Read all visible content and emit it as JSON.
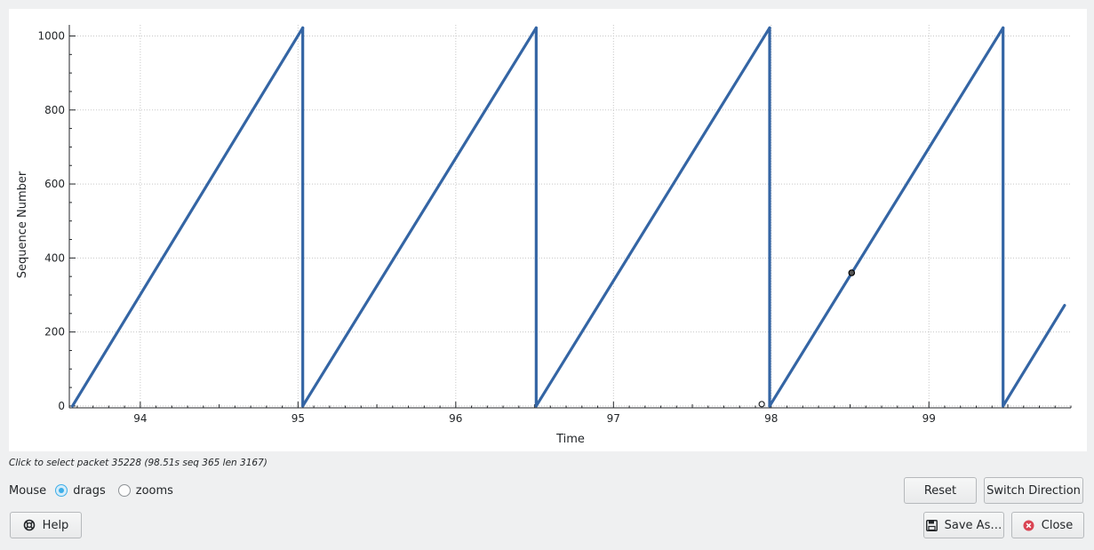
{
  "chart_data": {
    "type": "scatter",
    "title": "",
    "xlabel": "Time",
    "ylabel": "Sequence Number",
    "xlim": [
      93.55,
      99.9
    ],
    "ylim": [
      -5,
      1030
    ],
    "xticks": [
      "94",
      "95",
      "96",
      "97",
      "98",
      "99"
    ],
    "xtick_values": [
      94,
      95,
      96,
      97,
      98,
      99
    ],
    "yticks": [
      "0",
      "200",
      "400",
      "600",
      "800",
      "1000"
    ],
    "ytick_values": [
      0,
      200,
      400,
      600,
      800,
      1000
    ],
    "grid": true,
    "series": [
      {
        "color": "#3465a4",
        "segments": [
          {
            "x0": 93.57,
            "y0": 0,
            "x1": 95.03,
            "y1": 1022
          },
          {
            "x0": 95.03,
            "y0": 1022,
            "x1": 95.03,
            "y1": 0
          },
          {
            "x0": 95.03,
            "y0": 0,
            "x1": 96.51,
            "y1": 1022
          },
          {
            "x0": 96.51,
            "y0": 1022,
            "x1": 96.51,
            "y1": 0
          },
          {
            "x0": 96.51,
            "y0": 0,
            "x1": 97.99,
            "y1": 1022
          },
          {
            "x0": 97.99,
            "y0": 1022,
            "x1": 97.99,
            "y1": 0
          },
          {
            "x0": 97.99,
            "y0": 0,
            "x1": 99.47,
            "y1": 1022
          },
          {
            "x0": 99.47,
            "y0": 1022,
            "x1": 99.47,
            "y1": 0
          },
          {
            "x0": 99.47,
            "y0": 0,
            "x1": 99.86,
            "y1": 272
          }
        ]
      }
    ],
    "markers": [
      {
        "kind": "open-circle",
        "x": 97.94,
        "y": 5
      },
      {
        "kind": "selected-packet",
        "x": 98.51,
        "y": 360
      }
    ]
  },
  "status": {
    "hint": "Click to select packet 35228 (98.51s seq 365 len 3167)"
  },
  "mouse": {
    "label": "Mouse",
    "options": [
      {
        "label": "drags",
        "checked": true
      },
      {
        "label": "zooms",
        "checked": false
      }
    ]
  },
  "buttons": {
    "reset": "Reset",
    "switch_direction": "Switch Direction",
    "help": "Help",
    "save_as": "Save As…",
    "close": "Close"
  },
  "icons": {
    "help": "lifebuoy-icon",
    "save": "floppy-disk-icon",
    "close": "red-x-circle-icon"
  },
  "colors": {
    "series": "#3465a4",
    "accent": "#3daee9",
    "close_icon": "#da4453"
  }
}
